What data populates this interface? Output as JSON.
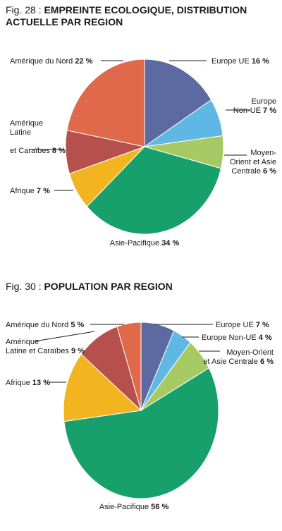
{
  "colors": {
    "europe_ue": "#5c6aa1",
    "europe_non_ue": "#5fb8e3",
    "moyen_orient": "#a7c963",
    "asie_pacifique": "#18a06c",
    "afrique": "#f2b41f",
    "amerique_latine": "#b5504c",
    "amerique_nord": "#e0694b"
  },
  "chart_data": [
    {
      "type": "pie",
      "title_prefix": "Fig. 28 : ",
      "title": "EMPREINTE ECOLOGIQUE, DISTRIBUTION ACTUELLE PAR REGION",
      "slices": [
        {
          "key": "europe_ue",
          "label_lines": [
            "Europe UE"
          ],
          "pct_text": "16 %",
          "value": 16,
          "color": "#5c6aa1"
        },
        {
          "key": "europe_non_ue",
          "label_lines": [
            "Europe",
            "Non-UE"
          ],
          "pct_text": "7 %",
          "value": 7,
          "color": "#5fb8e3"
        },
        {
          "key": "moyen_orient",
          "label_lines": [
            "Moyen-",
            "Orient et Asie",
            "Centrale"
          ],
          "pct_text": "6 %",
          "value": 6,
          "color": "#a7c963"
        },
        {
          "key": "asie_pacifique",
          "label_lines": [
            "Asie-Pacifique"
          ],
          "pct_text": "34 %",
          "value": 34,
          "color": "#18a06c"
        },
        {
          "key": "afrique",
          "label_lines": [
            "Afrique"
          ],
          "pct_text": "7 %",
          "value": 7,
          "color": "#f2b41f"
        },
        {
          "key": "amerique_latine",
          "label_lines": [
            "Amérique",
            "Latine",
            "et Caraïbes"
          ],
          "pct_text": "8 %",
          "value": 8,
          "color": "#b5504c"
        },
        {
          "key": "amerique_nord",
          "label_lines": [
            "Amérique du Nord"
          ],
          "pct_text": "22 %",
          "value": 22,
          "color": "#e0694b"
        }
      ]
    },
    {
      "type": "pie",
      "title_prefix": "Fig. 30 : ",
      "title": "POPULATION PAR REGION",
      "slices": [
        {
          "key": "europe_ue",
          "label_lines": [
            "Europe UE"
          ],
          "pct_text": "7 %",
          "value": 7,
          "color": "#5c6aa1"
        },
        {
          "key": "europe_non_ue",
          "label_lines": [
            "Europe Non-UE"
          ],
          "pct_text": "4 %",
          "value": 4,
          "color": "#5fb8e3"
        },
        {
          "key": "moyen_orient",
          "label_lines": [
            "Moyen-Orient",
            "et Asie Centrale"
          ],
          "pct_text": "6 %",
          "value": 6,
          "color": "#a7c963"
        },
        {
          "key": "asie_pacifique",
          "label_lines": [
            "Asie-Pacifique"
          ],
          "pct_text": "56 %",
          "value": 56,
          "color": "#18a06c"
        },
        {
          "key": "afrique",
          "label_lines": [
            "Afrique"
          ],
          "pct_text": "13 %",
          "value": 13,
          "color": "#f2b41f"
        },
        {
          "key": "amerique_latine",
          "label_lines": [
            "Amérique",
            "Latine et Caraïbes"
          ],
          "pct_text": "9 %",
          "value": 9,
          "color": "#b5504c"
        },
        {
          "key": "amerique_nord",
          "label_lines": [
            "Amérique du Nord"
          ],
          "pct_text": "5 %",
          "value": 5,
          "color": "#e0694b"
        }
      ]
    }
  ]
}
